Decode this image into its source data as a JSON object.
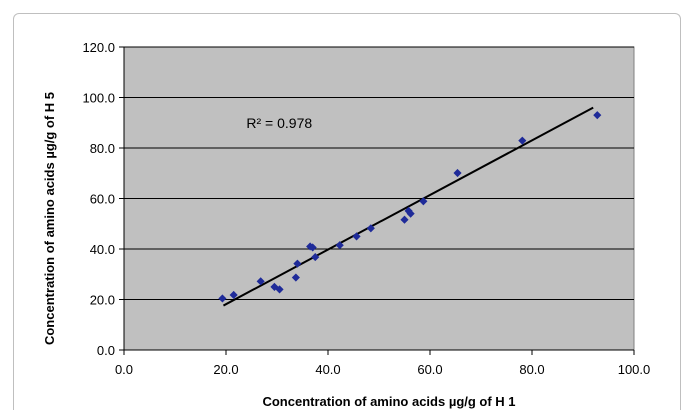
{
  "chart_data": {
    "type": "scatter",
    "title": "",
    "xlabel": "Concentration of amino acids µg/g of H 1",
    "ylabel": "Concentration of amino acids µg/g of H 5",
    "xlim": [
      0,
      100
    ],
    "ylim": [
      0,
      120
    ],
    "x_ticks": [
      "0.0",
      "20.0",
      "40.0",
      "60.0",
      "80.0",
      "100.0"
    ],
    "y_ticks": [
      "0.0",
      "20.0",
      "40.0",
      "60.0",
      "80.0",
      "100.0",
      "120.0"
    ],
    "grid": "horizontal",
    "plot_background": "#c0c0c0",
    "marker_color": "#1f2b99",
    "trendline_color": "#000000",
    "annotation": {
      "text": "R² = 0.978",
      "x": 24,
      "y": 88
    },
    "trendline": {
      "x": [
        19.5,
        92.0
      ],
      "y": [
        17.6,
        96.0
      ]
    },
    "series": [
      {
        "x": [
          19.3,
          21.5,
          26.8,
          29.5,
          30.5,
          33.7,
          34.0,
          36.5,
          37.0,
          37.5,
          42.3,
          45.6,
          48.4,
          55.0,
          55.8,
          56.2,
          58.7,
          65.4,
          78.1,
          92.8
        ],
        "y": [
          20.4,
          21.8,
          27.2,
          25.0,
          24.0,
          28.7,
          34.2,
          41.0,
          40.6,
          36.8,
          41.5,
          45.0,
          48.2,
          51.6,
          55.1,
          54.0,
          58.9,
          70.1,
          82.9,
          93.0
        ]
      }
    ]
  }
}
